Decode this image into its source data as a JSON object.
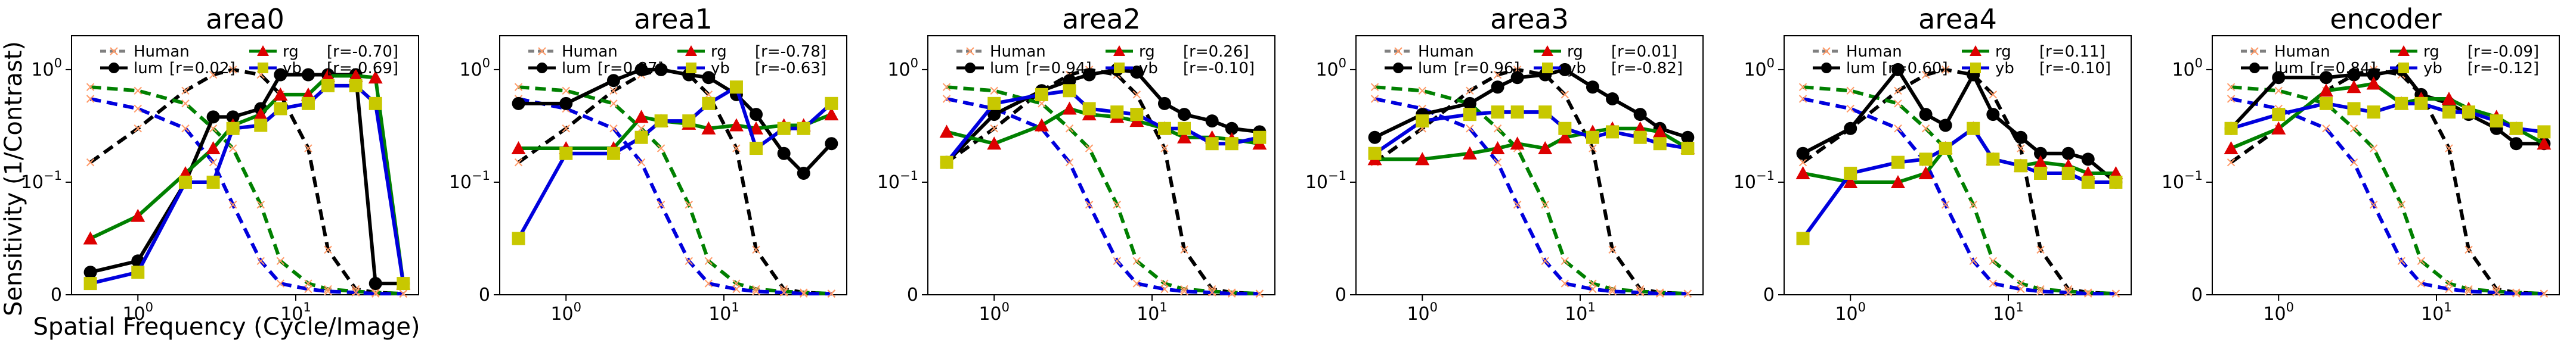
{
  "ylabel": "Sensitivity (1/Contrast)",
  "xlabel": "Spatial Frequency (Cycle/Image)",
  "legend_labels": {
    "human": "Human",
    "lum": "lum",
    "rg": "rg",
    "yb": "yb"
  },
  "colors": {
    "human": "#808080",
    "lum": "#000000",
    "rg": "#008000",
    "yb": "#0000dd",
    "human_marker": "#ff9966",
    "lum_marker": "#000000",
    "rg_marker": "#dd0000",
    "yb_marker": "#c8c800"
  },
  "chart_data": [
    {
      "type": "line",
      "title": "area0",
      "xscale": "log",
      "yscale": "symlog",
      "ylim": [
        0,
        2
      ],
      "x": [
        0.5,
        1,
        2,
        3,
        4,
        6,
        8,
        12,
        16,
        24,
        32,
        48
      ],
      "r": {
        "lum": "[r=0.02]",
        "rg": "[r=-0.70]",
        "yb": "[r=-0.69]"
      },
      "series": [
        {
          "name": "lum",
          "values": [
            0.02,
            0.03,
            0.1,
            0.38,
            0.38,
            0.45,
            0.9,
            0.9,
            0.9,
            0.9,
            0.01,
            0.01
          ]
        },
        {
          "name": "rg",
          "values": [
            0.05,
            0.07,
            0.12,
            0.2,
            0.32,
            0.4,
            0.6,
            0.6,
            0.88,
            0.88,
            0.85,
            0.01
          ]
        },
        {
          "name": "yb",
          "values": [
            0.01,
            0.02,
            0.1,
            0.1,
            0.3,
            0.32,
            0.45,
            0.5,
            0.72,
            0.72,
            0.5,
            0.01
          ]
        }
      ]
    },
    {
      "type": "line",
      "title": "area1",
      "xscale": "log",
      "yscale": "symlog",
      "ylim": [
        0,
        2
      ],
      "x": [
        0.5,
        1,
        2,
        3,
        4,
        6,
        8,
        12,
        16,
        24,
        32,
        48
      ],
      "r": {
        "lum": "[r=0.87]",
        "rg": "[r=-0.78]",
        "yb": "[r=-0.63]"
      },
      "series": [
        {
          "name": "lum",
          "values": [
            0.5,
            0.5,
            0.8,
            1.0,
            1.0,
            0.9,
            0.85,
            0.6,
            0.4,
            0.18,
            0.12,
            0.22
          ]
        },
        {
          "name": "rg",
          "values": [
            0.2,
            0.2,
            0.2,
            0.38,
            0.35,
            0.33,
            0.3,
            0.32,
            0.3,
            0.32,
            0.32,
            0.4
          ]
        },
        {
          "name": "yb",
          "values": [
            0.05,
            0.18,
            0.18,
            0.25,
            0.35,
            0.35,
            0.5,
            0.7,
            0.2,
            0.3,
            0.3,
            0.5
          ]
        }
      ]
    },
    {
      "type": "line",
      "title": "area2",
      "xscale": "log",
      "yscale": "symlog",
      "ylim": [
        0,
        2
      ],
      "x": [
        0.5,
        1,
        2,
        3,
        4,
        6,
        8,
        12,
        16,
        24,
        32,
        48
      ],
      "r": {
        "lum": "[r=0.94]",
        "rg": "[r=0.26]",
        "yb": "[r=-0.10]"
      },
      "series": [
        {
          "name": "lum",
          "values": [
            0.15,
            0.4,
            0.65,
            0.8,
            0.9,
            1.0,
            0.95,
            0.5,
            0.4,
            0.35,
            0.3,
            0.28
          ]
        },
        {
          "name": "rg",
          "values": [
            0.28,
            0.22,
            0.32,
            0.45,
            0.4,
            0.38,
            0.35,
            0.3,
            0.25,
            0.25,
            0.24,
            0.22
          ]
        },
        {
          "name": "yb",
          "values": [
            0.15,
            0.5,
            0.6,
            0.65,
            0.45,
            0.42,
            0.4,
            0.3,
            0.3,
            0.22,
            0.22,
            0.25
          ]
        }
      ]
    },
    {
      "type": "line",
      "title": "area3",
      "xscale": "log",
      "yscale": "symlog",
      "ylim": [
        0,
        2
      ],
      "x": [
        0.5,
        1,
        2,
        3,
        4,
        6,
        8,
        12,
        16,
        24,
        32,
        48
      ],
      "r": {
        "lum": "[r=0.96]",
        "rg": "[r=0.01]",
        "yb": "[r=-0.82]"
      },
      "series": [
        {
          "name": "lum",
          "values": [
            0.25,
            0.4,
            0.5,
            0.7,
            0.85,
            0.9,
            1.0,
            0.7,
            0.55,
            0.4,
            0.3,
            0.25
          ]
        },
        {
          "name": "rg",
          "values": [
            0.16,
            0.16,
            0.18,
            0.2,
            0.22,
            0.2,
            0.25,
            0.28,
            0.3,
            0.3,
            0.28,
            0.2
          ]
        },
        {
          "name": "yb",
          "values": [
            0.18,
            0.35,
            0.4,
            0.42,
            0.42,
            0.42,
            0.3,
            0.25,
            0.28,
            0.25,
            0.22,
            0.2
          ]
        }
      ]
    },
    {
      "type": "line",
      "title": "area4",
      "xscale": "log",
      "yscale": "symlog",
      "ylim": [
        0,
        2
      ],
      "x": [
        0.5,
        1,
        2,
        3,
        4,
        6,
        8,
        12,
        16,
        24,
        32,
        48
      ],
      "r": {
        "lum": "[r=0.60]",
        "rg": "[r=0.11]",
        "yb": "[r=-0.10]"
      },
      "series": [
        {
          "name": "lum",
          "values": [
            0.18,
            0.3,
            1.0,
            0.4,
            0.32,
            0.9,
            0.4,
            0.25,
            0.18,
            0.18,
            0.16,
            0.1
          ]
        },
        {
          "name": "rg",
          "values": [
            0.12,
            0.1,
            0.1,
            0.12,
            0.2,
            0.3,
            0.16,
            0.14,
            0.15,
            0.14,
            0.12,
            0.12
          ]
        },
        {
          "name": "yb",
          "values": [
            0.05,
            0.12,
            0.15,
            0.16,
            0.2,
            0.3,
            0.16,
            0.14,
            0.12,
            0.12,
            0.1,
            0.1
          ]
        }
      ]
    },
    {
      "type": "line",
      "title": "encoder",
      "xscale": "log",
      "yscale": "symlog",
      "ylim": [
        0,
        2
      ],
      "x": [
        0.5,
        1,
        2,
        3,
        4,
        6,
        8,
        12,
        16,
        24,
        32,
        48
      ],
      "r": {
        "lum": "[r=0.84]",
        "rg": "[r=-0.09]",
        "yb": "[r=-0.12]"
      },
      "series": [
        {
          "name": "lum",
          "values": [
            0.3,
            0.85,
            0.85,
            0.9,
            0.9,
            1.0,
            0.6,
            0.5,
            0.4,
            0.3,
            0.22,
            0.22
          ]
        },
        {
          "name": "rg",
          "values": [
            0.2,
            0.3,
            0.65,
            0.7,
            0.75,
            0.5,
            0.55,
            0.55,
            0.45,
            0.38,
            0.3,
            0.22
          ]
        },
        {
          "name": "yb",
          "values": [
            0.3,
            0.4,
            0.5,
            0.45,
            0.42,
            0.5,
            0.5,
            0.42,
            0.42,
            0.35,
            0.3,
            0.28
          ]
        }
      ]
    }
  ],
  "human_csf": {
    "x": [
      0.5,
      1,
      2,
      3,
      4,
      6,
      8,
      12,
      16,
      24,
      32,
      48
    ],
    "lum": [
      0.15,
      0.3,
      0.65,
      0.9,
      1.0,
      0.9,
      0.6,
      0.2,
      0.04,
      0.005,
      0.002,
      0.001
    ],
    "rg": [
      0.7,
      0.65,
      0.5,
      0.3,
      0.2,
      0.08,
      0.03,
      0.01,
      0.005,
      0.003,
      0.002,
      0.001
    ],
    "yb": [
      0.55,
      0.45,
      0.3,
      0.15,
      0.08,
      0.03,
      0.01,
      0.005,
      0.003,
      0.002,
      0.001,
      0.001
    ]
  },
  "ticks": {
    "x": [
      {
        "v": 1,
        "base": "10",
        "exp": "0"
      },
      {
        "v": 10,
        "base": "10",
        "exp": "1"
      }
    ],
    "y": [
      {
        "v": 0,
        "text": "0"
      },
      {
        "v": 0.1,
        "base": "10",
        "exp": "−1"
      },
      {
        "v": 1,
        "base": "10",
        "exp": "0"
      }
    ]
  }
}
